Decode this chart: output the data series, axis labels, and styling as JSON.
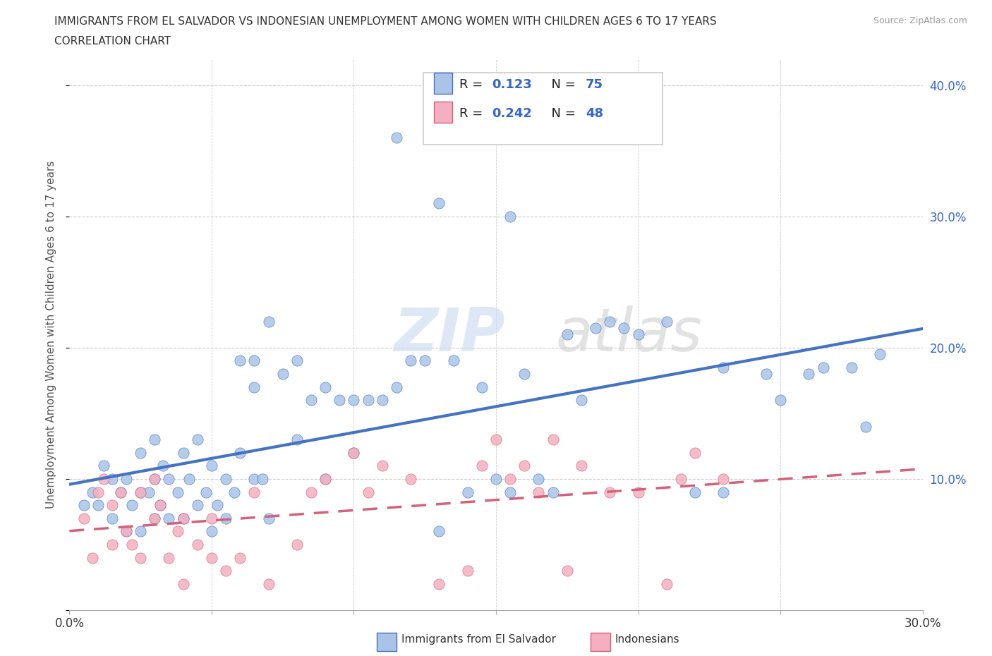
{
  "title_line1": "IMMIGRANTS FROM EL SALVADOR VS INDONESIAN UNEMPLOYMENT AMONG WOMEN WITH CHILDREN AGES 6 TO 17 YEARS",
  "title_line2": "CORRELATION CHART",
  "source_text": "Source: ZipAtlas.com",
  "ylabel": "Unemployment Among Women with Children Ages 6 to 17 years",
  "xlim": [
    0.0,
    0.3
  ],
  "ylim": [
    0.0,
    0.42
  ],
  "watermark_zip": "ZIP",
  "watermark_atlas": "atlas",
  "legend_R1": "0.123",
  "legend_N1": "75",
  "legend_R2": "0.242",
  "legend_N2": "48",
  "color_blue": "#aac4e8",
  "color_pink": "#f5afc0",
  "line_color_blue": "#4472c4",
  "line_color_pink": "#d4607a",
  "background_color": "#ffffff",
  "grid_color": "#cccccc",
  "blue_scatter_x": [
    0.005,
    0.008,
    0.01,
    0.012,
    0.015,
    0.015,
    0.018,
    0.02,
    0.02,
    0.022,
    0.025,
    0.025,
    0.025,
    0.028,
    0.03,
    0.03,
    0.03,
    0.032,
    0.033,
    0.035,
    0.035,
    0.038,
    0.04,
    0.04,
    0.042,
    0.045,
    0.045,
    0.048,
    0.05,
    0.05,
    0.052,
    0.055,
    0.055,
    0.058,
    0.06,
    0.06,
    0.065,
    0.065,
    0.065,
    0.068,
    0.07,
    0.07,
    0.075,
    0.08,
    0.08,
    0.085,
    0.09,
    0.09,
    0.095,
    0.1,
    0.1,
    0.105,
    0.11,
    0.115,
    0.12,
    0.125,
    0.13,
    0.135,
    0.14,
    0.145,
    0.15,
    0.155,
    0.16,
    0.165,
    0.17,
    0.175,
    0.18,
    0.19,
    0.2,
    0.21,
    0.22,
    0.23,
    0.25,
    0.26,
    0.28
  ],
  "blue_scatter_y": [
    0.08,
    0.09,
    0.08,
    0.11,
    0.07,
    0.1,
    0.09,
    0.06,
    0.1,
    0.08,
    0.09,
    0.12,
    0.06,
    0.09,
    0.07,
    0.1,
    0.13,
    0.08,
    0.11,
    0.07,
    0.1,
    0.09,
    0.07,
    0.12,
    0.1,
    0.08,
    0.13,
    0.09,
    0.06,
    0.11,
    0.08,
    0.07,
    0.1,
    0.09,
    0.12,
    0.19,
    0.1,
    0.17,
    0.19,
    0.1,
    0.07,
    0.22,
    0.18,
    0.13,
    0.19,
    0.16,
    0.1,
    0.17,
    0.16,
    0.12,
    0.16,
    0.16,
    0.16,
    0.17,
    0.19,
    0.19,
    0.06,
    0.19,
    0.09,
    0.17,
    0.1,
    0.09,
    0.18,
    0.1,
    0.09,
    0.21,
    0.16,
    0.22,
    0.21,
    0.22,
    0.09,
    0.09,
    0.16,
    0.18,
    0.14
  ],
  "blue_scatter_x2": [
    0.115,
    0.13,
    0.155,
    0.185,
    0.195,
    0.23,
    0.245,
    0.265,
    0.275,
    0.285
  ],
  "blue_scatter_y2": [
    0.36,
    0.31,
    0.3,
    0.215,
    0.215,
    0.185,
    0.18,
    0.185,
    0.185,
    0.195
  ],
  "pink_scatter_x": [
    0.005,
    0.008,
    0.01,
    0.012,
    0.015,
    0.015,
    0.018,
    0.02,
    0.022,
    0.025,
    0.025,
    0.03,
    0.03,
    0.032,
    0.035,
    0.038,
    0.04,
    0.04,
    0.045,
    0.05,
    0.05,
    0.055,
    0.06,
    0.065,
    0.07,
    0.08,
    0.085,
    0.09,
    0.1,
    0.105,
    0.11,
    0.12,
    0.13,
    0.14,
    0.145,
    0.15,
    0.155,
    0.16,
    0.165,
    0.17,
    0.175,
    0.18,
    0.19,
    0.2,
    0.21,
    0.215,
    0.22,
    0.23
  ],
  "pink_scatter_y": [
    0.07,
    0.04,
    0.09,
    0.1,
    0.05,
    0.08,
    0.09,
    0.06,
    0.05,
    0.04,
    0.09,
    0.07,
    0.1,
    0.08,
    0.04,
    0.06,
    0.02,
    0.07,
    0.05,
    0.04,
    0.07,
    0.03,
    0.04,
    0.09,
    0.02,
    0.05,
    0.09,
    0.1,
    0.12,
    0.09,
    0.11,
    0.1,
    0.02,
    0.03,
    0.11,
    0.13,
    0.1,
    0.11,
    0.09,
    0.13,
    0.03,
    0.11,
    0.09,
    0.09,
    0.02,
    0.1,
    0.12,
    0.1
  ]
}
